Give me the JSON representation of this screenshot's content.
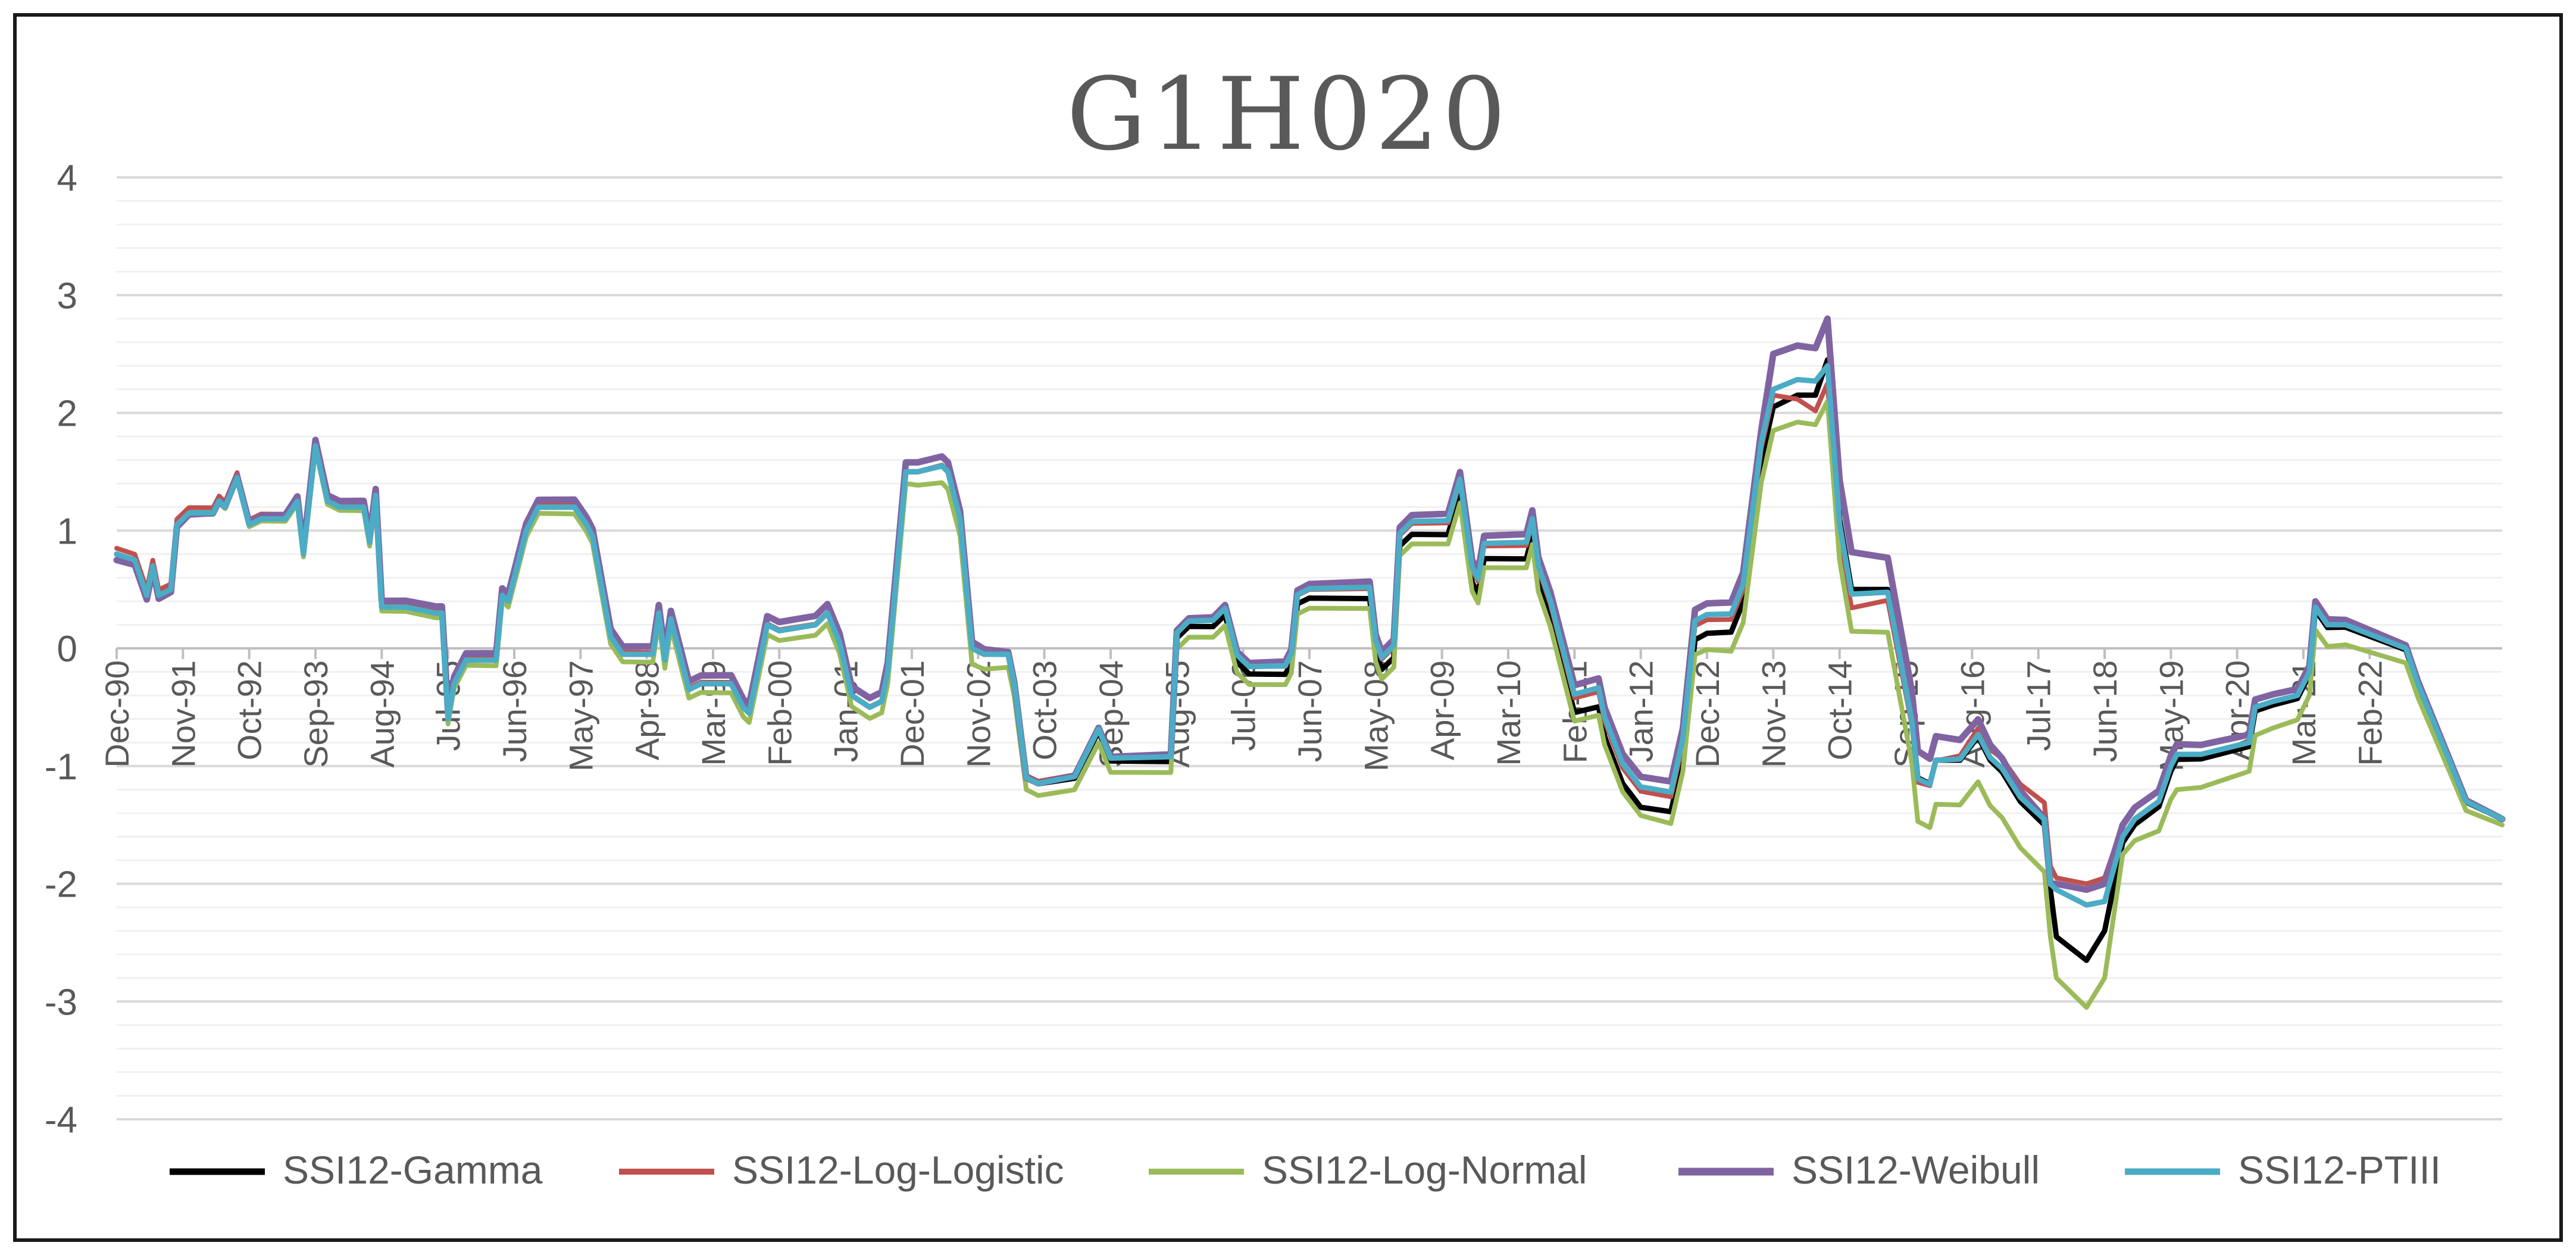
{
  "chart_data": {
    "type": "line",
    "title": "G1H020",
    "xlabel": "",
    "ylabel": "",
    "ylim": [
      -4,
      4
    ],
    "yticks": [
      4,
      3,
      2,
      1,
      0,
      -1,
      -2,
      -3,
      -4
    ],
    "minor_grid_step": 0.2,
    "grid": true,
    "legend_position": "bottom",
    "x_range": [
      "1990-12",
      "2023-12"
    ],
    "xtick_labels": [
      "Dec-90",
      "Nov-91",
      "Oct-92",
      "Sep-93",
      "Aug-94",
      "Jul-95",
      "Jun-96",
      "May-97",
      "Apr-98",
      "Mar-99",
      "Feb-00",
      "Jan-01",
      "Dec-01",
      "Nov-02",
      "Oct-03",
      "Sep-04",
      "Aug-05",
      "Jul-06",
      "Jun-07",
      "May-08",
      "Apr-09",
      "Mar-10",
      "Feb-11",
      "Jan-12",
      "Dec-12",
      "Nov-13",
      "Oct-14",
      "Sep-15",
      "Aug-16",
      "Jul-17",
      "Jun-18",
      "May-19",
      "Apr-20",
      "Mar-21",
      "Feb-22"
    ],
    "xtick_dates": [
      "1990-12",
      "1991-11",
      "1992-10",
      "1993-09",
      "1994-08",
      "1995-07",
      "1996-06",
      "1997-05",
      "1998-04",
      "1999-03",
      "2000-02",
      "2001-01",
      "2001-12",
      "2002-11",
      "2003-10",
      "2004-09",
      "2005-08",
      "2006-07",
      "2007-06",
      "2008-05",
      "2009-04",
      "2010-03",
      "2011-02",
      "2012-01",
      "2012-12",
      "2013-11",
      "2014-10",
      "2015-09",
      "2016-08",
      "2017-07",
      "2018-06",
      "2019-05",
      "2020-04",
      "2021-03",
      "2022-02"
    ],
    "base_series": [
      [
        "1990-12",
        0.8
      ],
      [
        "1991-03",
        0.75
      ],
      [
        "1991-05",
        0.45
      ],
      [
        "1991-06",
        0.7
      ],
      [
        "1991-07",
        0.45
      ],
      [
        "1991-09",
        0.5
      ],
      [
        "1991-10",
        1.05
      ],
      [
        "1991-12",
        1.15
      ],
      [
        "1992-04",
        1.15
      ],
      [
        "1992-05",
        1.25
      ],
      [
        "1992-06",
        1.2
      ],
      [
        "1992-08",
        1.45
      ],
      [
        "1992-10",
        1.05
      ],
      [
        "1992-12",
        1.1
      ],
      [
        "1993-04",
        1.1
      ],
      [
        "1993-06",
        1.25
      ],
      [
        "1993-07",
        0.8
      ],
      [
        "1993-09",
        1.72
      ],
      [
        "1993-11",
        1.25
      ],
      [
        "1994-01",
        1.2
      ],
      [
        "1994-05",
        1.2
      ],
      [
        "1994-06",
        0.9
      ],
      [
        "1994-07",
        1.3
      ],
      [
        "1994-08",
        0.35
      ],
      [
        "1994-12",
        0.35
      ],
      [
        "1995-05",
        0.3
      ],
      [
        "1995-06",
        0.3
      ],
      [
        "1995-07",
        -0.6
      ],
      [
        "1995-08",
        -0.3
      ],
      [
        "1995-10",
        -0.1
      ],
      [
        "1996-03",
        -0.1
      ],
      [
        "1996-04",
        0.45
      ],
      [
        "1996-05",
        0.4
      ],
      [
        "1996-08",
        1.0
      ],
      [
        "1996-10",
        1.2
      ],
      [
        "1997-04",
        1.2
      ],
      [
        "1997-06",
        1.05
      ],
      [
        "1997-07",
        0.95
      ],
      [
        "1997-10",
        0.1
      ],
      [
        "1997-12",
        -0.05
      ],
      [
        "1998-05",
        -0.05
      ],
      [
        "1998-06",
        0.3
      ],
      [
        "1998-07",
        -0.1
      ],
      [
        "1998-08",
        0.25
      ],
      [
        "1998-11",
        -0.35
      ],
      [
        "1999-01",
        -0.3
      ],
      [
        "1999-06",
        -0.3
      ],
      [
        "1999-08",
        -0.5
      ],
      [
        "1999-09",
        -0.55
      ],
      [
        "1999-12",
        0.2
      ],
      [
        "2000-02",
        0.15
      ],
      [
        "2000-08",
        0.2
      ],
      [
        "2000-10",
        0.3
      ],
      [
        "2000-12",
        0.05
      ],
      [
        "2001-02",
        -0.4
      ],
      [
        "2001-05",
        -0.5
      ],
      [
        "2001-07",
        -0.45
      ],
      [
        "2001-08",
        -0.2
      ],
      [
        "2001-11",
        1.5
      ],
      [
        "2002-01",
        1.5
      ],
      [
        "2002-05",
        1.55
      ],
      [
        "2002-06",
        1.5
      ],
      [
        "2002-08",
        1.1
      ],
      [
        "2002-10",
        0.0
      ],
      [
        "2002-12",
        -0.05
      ],
      [
        "2003-04",
        -0.05
      ],
      [
        "2003-05",
        -0.3
      ],
      [
        "2003-07",
        -1.1
      ],
      [
        "2003-09",
        -1.15
      ],
      [
        "2004-03",
        -1.1
      ],
      [
        "2004-07",
        -0.7
      ],
      [
        "2004-09",
        -0.95
      ],
      [
        "2005-07",
        -0.95
      ],
      [
        "2005-08",
        0.1
      ],
      [
        "2005-10",
        0.2
      ],
      [
        "2006-02",
        0.2
      ],
      [
        "2006-04",
        0.3
      ],
      [
        "2006-06",
        -0.1
      ],
      [
        "2006-08",
        -0.2
      ],
      [
        "2007-02",
        -0.2
      ],
      [
        "2007-03",
        -0.1
      ],
      [
        "2007-04",
        0.4
      ],
      [
        "2007-06",
        0.45
      ],
      [
        "2008-04",
        0.45
      ],
      [
        "2008-05",
        0.0
      ],
      [
        "2008-06",
        -0.15
      ],
      [
        "2008-08",
        -0.05
      ],
      [
        "2008-09",
        0.9
      ],
      [
        "2008-11",
        1.0
      ],
      [
        "2009-05",
        1.0
      ],
      [
        "2009-07",
        1.35
      ],
      [
        "2009-09",
        0.6
      ],
      [
        "2009-10",
        0.5
      ],
      [
        "2009-11",
        0.8
      ],
      [
        "2010-06",
        0.8
      ],
      [
        "2010-07",
        1.0
      ],
      [
        "2010-08",
        0.6
      ],
      [
        "2010-10",
        0.3
      ],
      [
        "2011-02",
        -0.5
      ],
      [
        "2011-06",
        -0.45
      ],
      [
        "2011-07",
        -0.7
      ],
      [
        "2011-10",
        -1.1
      ],
      [
        "2012-01",
        -1.3
      ],
      [
        "2012-06",
        -1.35
      ],
      [
        "2012-08",
        -0.9
      ],
      [
        "2012-10",
        0.1
      ],
      [
        "2012-12",
        0.15
      ],
      [
        "2013-04",
        0.15
      ],
      [
        "2013-06",
        0.4
      ],
      [
        "2013-09",
        1.6
      ],
      [
        "2013-11",
        2.05
      ],
      [
        "2014-03",
        2.15
      ],
      [
        "2014-06",
        2.15
      ],
      [
        "2014-08",
        2.45
      ],
      [
        "2014-10",
        1.1
      ],
      [
        "2014-12",
        0.5
      ],
      [
        "2015-06",
        0.5
      ],
      [
        "2015-10",
        -0.6
      ],
      [
        "2015-11",
        -1.1
      ],
      [
        "2016-01",
        -1.15
      ],
      [
        "2016-02",
        -0.95
      ],
      [
        "2016-06",
        -0.95
      ],
      [
        "2016-09",
        -0.75
      ],
      [
        "2016-11",
        -0.95
      ],
      [
        "2017-01",
        -1.05
      ],
      [
        "2017-04",
        -1.3
      ],
      [
        "2017-08",
        -1.5
      ],
      [
        "2017-09",
        -2.05
      ],
      [
        "2017-10",
        -2.25
      ],
      [
        "2018-03",
        -2.4
      ],
      [
        "2018-06",
        -2.2
      ],
      [
        "2018-09",
        -1.6
      ],
      [
        "2018-11",
        -1.45
      ],
      [
        "2019-03",
        -1.3
      ],
      [
        "2019-05",
        -1.0
      ],
      [
        "2019-06",
        -0.9
      ],
      [
        "2019-10",
        -0.9
      ],
      [
        "2020-06",
        -0.8
      ],
      [
        "2020-07",
        -0.5
      ],
      [
        "2020-10",
        -0.45
      ],
      [
        "2021-02",
        -0.4
      ],
      [
        "2021-04",
        -0.2
      ],
      [
        "2021-05",
        0.35
      ],
      [
        "2021-07",
        0.2
      ],
      [
        "2021-10",
        0.2
      ],
      [
        "2022-03",
        0.1
      ],
      [
        "2022-08",
        0.0
      ],
      [
        "2022-10",
        -0.3
      ],
      [
        "2023-06",
        -1.3
      ],
      [
        "2023-12",
        -1.45
      ]
    ],
    "series": [
      {
        "name": "SSI12-Gamma",
        "color": "#000000",
        "offsets": [
          [
            "1990-12",
            0
          ],
          [
            "2003-06",
            0
          ],
          [
            "2003-07",
            0
          ],
          [
            "2012-01",
            -0.05
          ],
          [
            "2013-09",
            0
          ],
          [
            "2013-11",
            0
          ],
          [
            "2014-08",
            0
          ],
          [
            "2017-09",
            0
          ],
          [
            "2017-10",
            -0.2
          ],
          [
            "2018-03",
            -0.25
          ],
          [
            "2018-06",
            -0.2
          ],
          [
            "2018-09",
            -0.05
          ],
          [
            "2023-12",
            0
          ]
        ],
        "width": 9
      },
      {
        "name": "SSI12-Log-Logistic",
        "color": "#c0504d",
        "offsets": [
          [
            "1990-12",
            0.05
          ],
          [
            "2001-11",
            0
          ],
          [
            "2003-07",
            0.02
          ],
          [
            "2013-11",
            0.1
          ],
          [
            "2014-08",
            -0.2
          ],
          [
            "2017-09",
            0.2
          ],
          [
            "2017-10",
            0.3
          ],
          [
            "2018-03",
            0.4
          ],
          [
            "2018-06",
            0.25
          ],
          [
            "2018-09",
            0.1
          ],
          [
            "2023-12",
            0
          ]
        ],
        "width": 8
      },
      {
        "name": "SSI12-Log-Normal",
        "color": "#9bbb59",
        "offsets": [
          [
            "1990-12",
            0
          ],
          [
            "2001-11",
            -0.1
          ],
          [
            "2002-06",
            -0.15
          ],
          [
            "2003-07",
            -0.1
          ],
          [
            "2012-01",
            -0.12
          ],
          [
            "2013-11",
            -0.2
          ],
          [
            "2014-06",
            -0.25
          ],
          [
            "2014-08",
            -0.35
          ],
          [
            "2017-09",
            -0.4
          ],
          [
            "2017-10",
            -0.55
          ],
          [
            "2018-03",
            -0.65
          ],
          [
            "2018-06",
            -0.6
          ],
          [
            "2018-09",
            -0.15
          ],
          [
            "2019-06",
            -0.3
          ],
          [
            "2023-12",
            -0.05
          ]
        ],
        "width": 8
      },
      {
        "name": "SSI12-Weibull",
        "color": "#8064a2",
        "offsets": [
          [
            "1990-12",
            -0.05
          ],
          [
            "1993-09",
            0.05
          ],
          [
            "2001-11",
            0.08
          ],
          [
            "2002-06",
            0.08
          ],
          [
            "2003-07",
            0.0
          ],
          [
            "2013-09",
            0.25
          ],
          [
            "2013-11",
            0.45
          ],
          [
            "2014-06",
            0.4
          ],
          [
            "2014-08",
            0.35
          ],
          [
            "2017-09",
            0.05
          ],
          [
            "2017-10",
            0.25
          ],
          [
            "2018-03",
            0.35
          ],
          [
            "2018-06",
            0.2
          ],
          [
            "2018-09",
            0.1
          ],
          [
            "2023-12",
            0
          ]
        ],
        "width": 11
      },
      {
        "name": "SSI12-PTIII",
        "color": "#4bacc6",
        "offsets": [
          [
            "1990-12",
            0
          ],
          [
            "2001-11",
            0
          ],
          [
            "2003-07",
            0
          ],
          [
            "2013-11",
            0.15
          ],
          [
            "2014-06",
            0.12
          ],
          [
            "2014-08",
            -0.05
          ],
          [
            "2017-09",
            0.05
          ],
          [
            "2017-10",
            0.2
          ],
          [
            "2018-03",
            0.22
          ],
          [
            "2018-06",
            0.05
          ],
          [
            "2018-09",
            0.0
          ],
          [
            "2023-12",
            0
          ]
        ],
        "width": 9
      }
    ]
  }
}
